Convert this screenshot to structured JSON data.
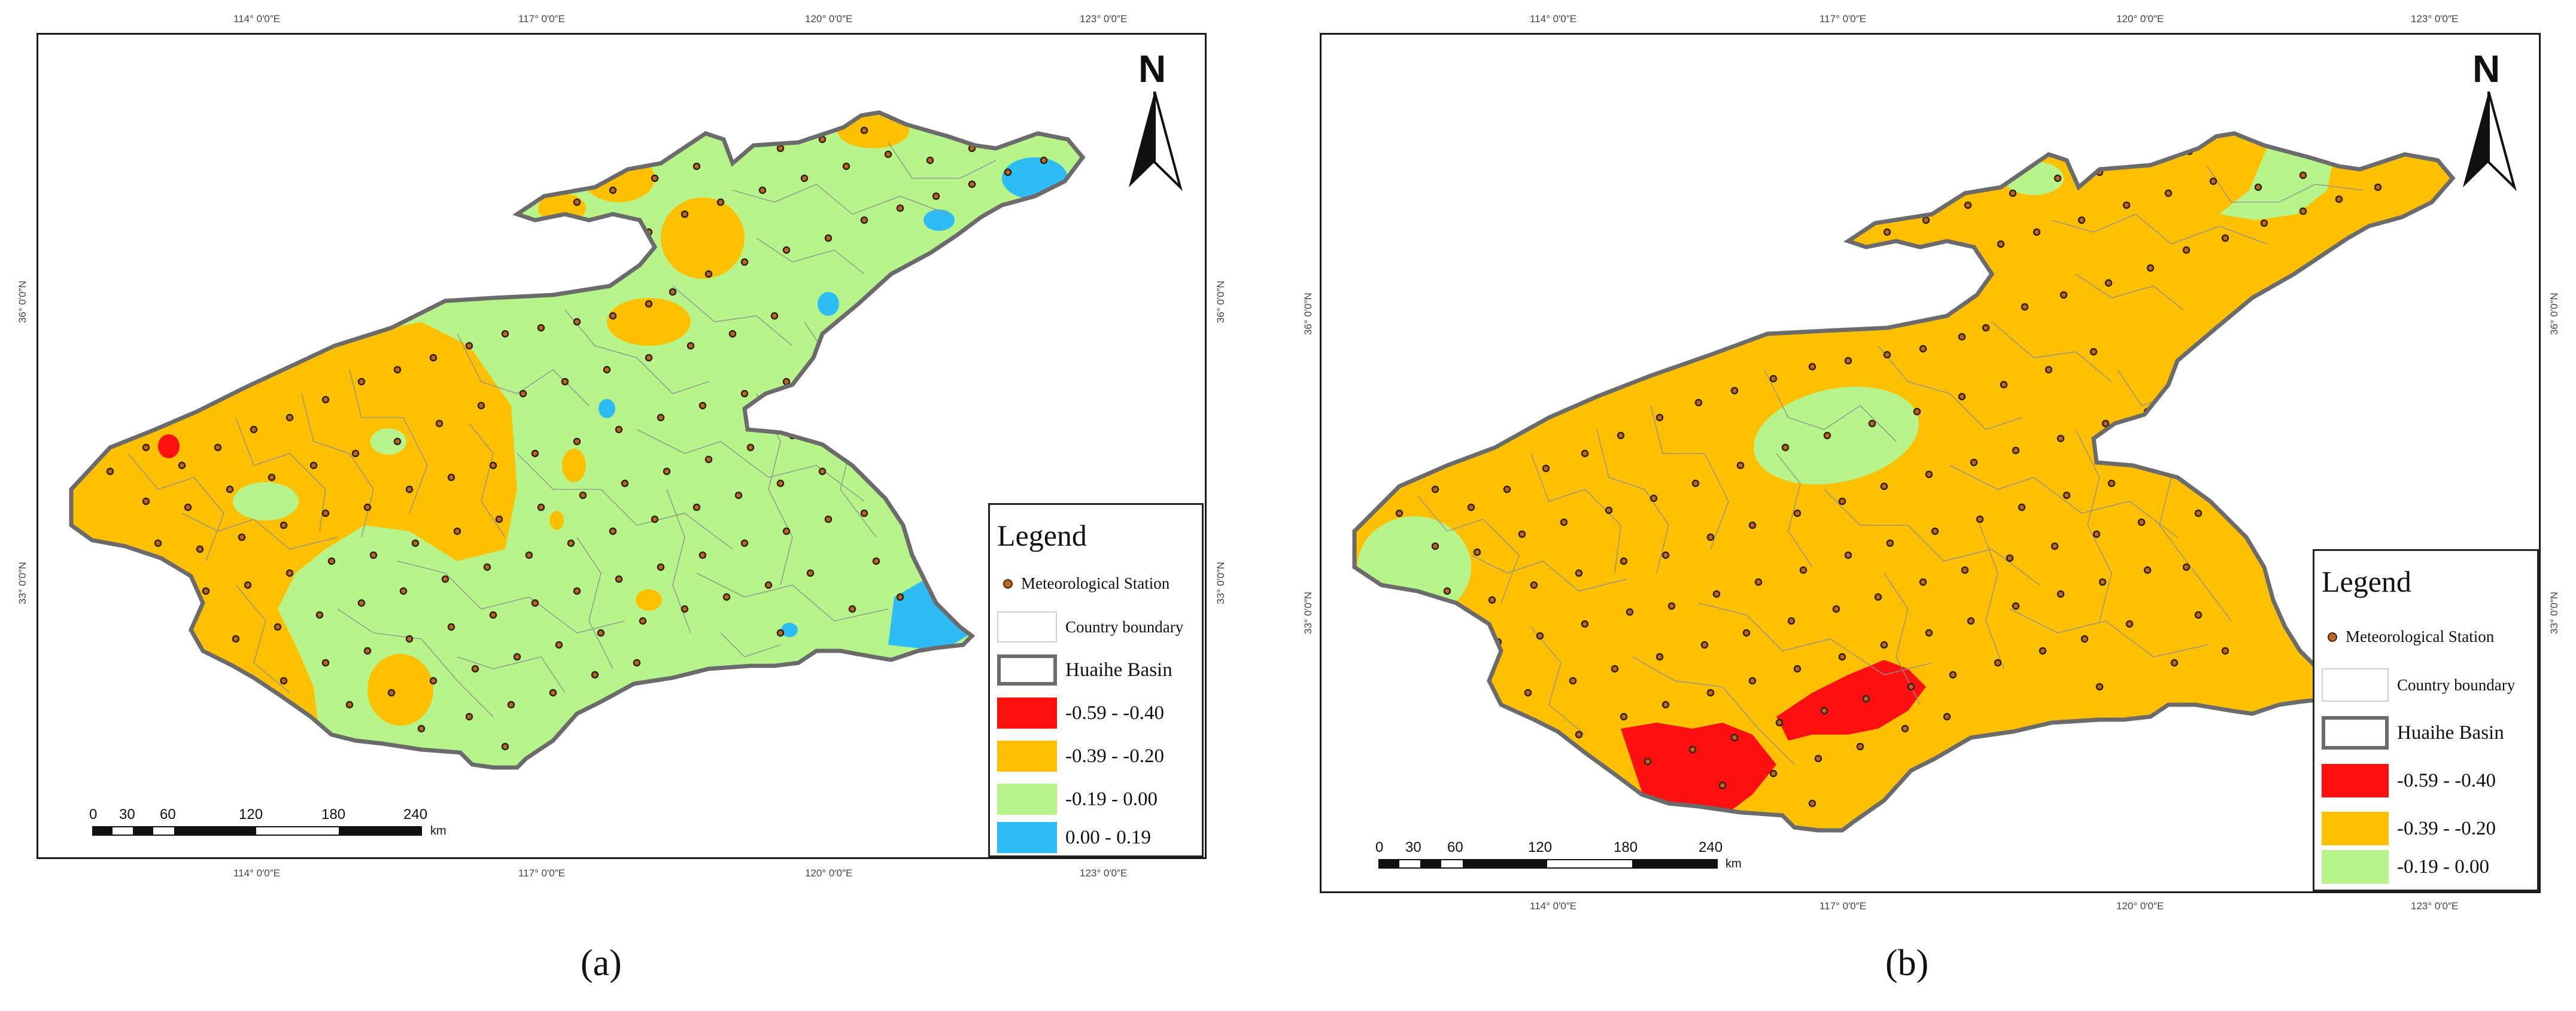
{
  "colors": {
    "red": "#ff1010",
    "orange": "#ffc000",
    "green": "#b7f58a",
    "blue": "#2ebcf4",
    "basin_border": "#6b6b6b",
    "county_line": "#8f8f8f",
    "station_fill": "#c0651f"
  },
  "axis_ticks": {
    "lon": [
      "114° 0′0″E",
      "117° 0′0″E",
      "120° 0′0″E",
      "123° 0′0″E"
    ],
    "lat": [
      "36° 0′0″N",
      "33° 0′0″N"
    ]
  },
  "panels": [
    {
      "label": "(a)",
      "north": "N",
      "legend": {
        "title": "Legend",
        "station": "Meteorological Station",
        "country": "Country boundary",
        "basin": "Huaihe Basin",
        "classes": [
          {
            "range": "-0.59 - -0.40",
            "color": "#ff1010"
          },
          {
            "range": "-0.39 - -0.20",
            "color": "#ffc000"
          },
          {
            "range": "-0.19 - 0.00",
            "color": "#b7f58a"
          },
          {
            "range": "0.00 - 0.19",
            "color": "#2ebcf4"
          }
        ]
      },
      "scale": {
        "ticks": [
          "0",
          "30",
          "60",
          "120",
          "180",
          "240"
        ],
        "unit": "km"
      }
    },
    {
      "label": "(b)",
      "north": "N",
      "legend": {
        "title": "Legend",
        "station": "Meteorological Station",
        "country": "Country boundary",
        "basin": "Huaihe Basin",
        "classes": [
          {
            "range": "-0.59 - -0.40",
            "color": "#ff1010"
          },
          {
            "range": "-0.39 - -0.20",
            "color": "#ffc000"
          },
          {
            "range": "-0.19 - 0.00",
            "color": "#b7f58a"
          }
        ]
      },
      "scale": {
        "ticks": [
          "0",
          "30",
          "60",
          "120",
          "180",
          "240"
        ],
        "unit": "km"
      }
    }
  ]
}
